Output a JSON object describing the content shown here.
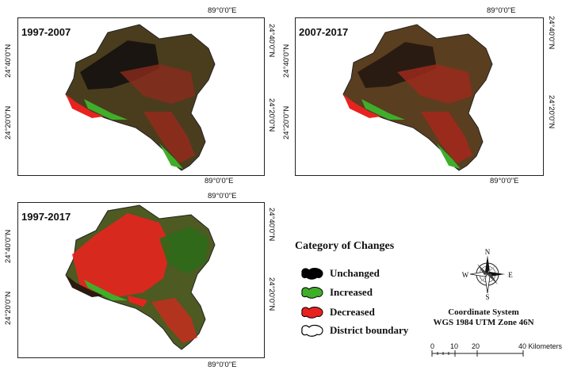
{
  "maps": [
    {
      "period": "1997-2007",
      "lat_upper": "24°40'0\"N",
      "lat_lower": "24°20'0\"N",
      "lon_top": "89°0'0\"E",
      "lon_bottom": "89°0'0\"E"
    },
    {
      "period": "2007-2017",
      "lat_upper": "24°40'0\"N",
      "lat_lower": "24°20'0\"N",
      "lon_top": "89°0'0\"E",
      "lon_bottom": "89°0'0\"E"
    },
    {
      "period": "1997-2017",
      "lat_upper": "24°40'0\"N",
      "lat_lower": "24°20'0\"N",
      "lon_top": "89°0'0\"E",
      "lon_bottom": "89°0'0\"E"
    }
  ],
  "legend": {
    "title": "Category of Changes",
    "items": [
      {
        "label": "Unchanged",
        "color": "#000000"
      },
      {
        "label": "Increased",
        "color": "#3fae2a"
      },
      {
        "label": "Decreased",
        "color": "#e8231f"
      },
      {
        "label": "District boundary",
        "color": "#ffffff"
      }
    ]
  },
  "compass": {
    "n": "N",
    "s": "S",
    "e": "E",
    "w": "W"
  },
  "coordinate_system": {
    "title": "Coordinate System",
    "name": "WGS 1984 UTM Zone 46N"
  },
  "scale_bar": {
    "ticks": [
      "0",
      "10",
      "20",
      "40 Kilometers"
    ]
  }
}
